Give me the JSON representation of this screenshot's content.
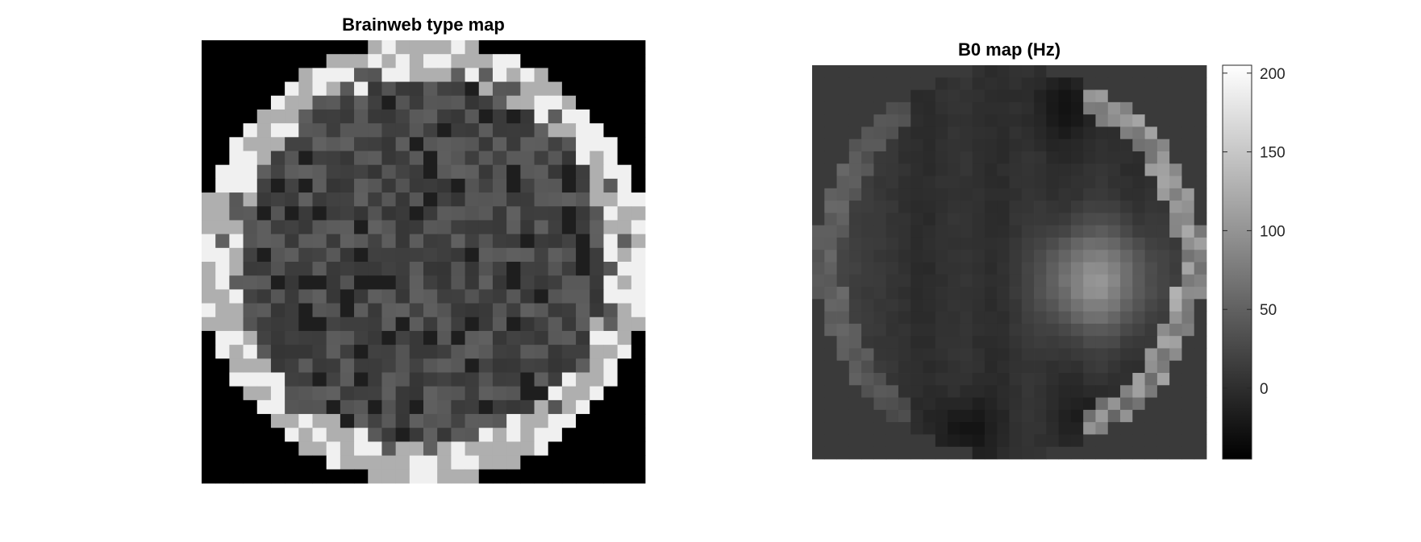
{
  "chart_data": [
    {
      "type": "heatmap",
      "title": "Brainweb type map",
      "colormap": "gray",
      "grid": "off",
      "axes_visible": false,
      "matrix_size": [
        32,
        32
      ],
      "description_values": "tissue class label per voxel: 0 background (black), 1 CSF (dark), 2 grey matter (mid-dark), 3 white matter (mid), 4 fat/skin (light), 5 skull (lightest)"
    },
    {
      "type": "heatmap",
      "title": "B0 map (Hz)",
      "colormap": "gray",
      "grid": "off",
      "axes_visible": false,
      "matrix_size": [
        32,
        32
      ],
      "clim": [
        -45,
        205
      ],
      "colorbar": {
        "placement": "right",
        "ticks": [
          0,
          50,
          100,
          150,
          200
        ],
        "tick_labels": [
          "0",
          "50",
          "100",
          "150",
          "200"
        ]
      }
    }
  ]
}
